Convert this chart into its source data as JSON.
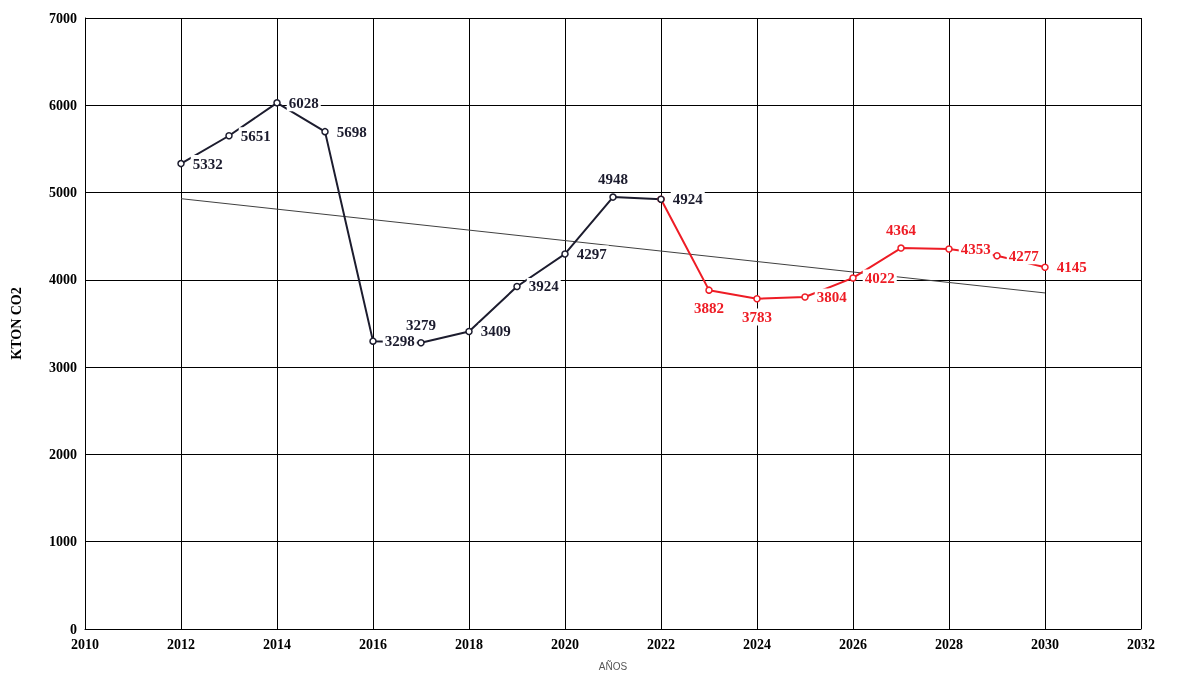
{
  "chart_data": {
    "type": "line",
    "xlabel": "AÑOS",
    "ylabel": "KTON CO2",
    "xlim": [
      2010,
      2032
    ],
    "xticks": [
      2010,
      2012,
      2014,
      2016,
      2018,
      2020,
      2022,
      2024,
      2026,
      2028,
      2030,
      2032
    ],
    "ylim": [
      0,
      7000
    ],
    "yticks": [
      0,
      1000,
      2000,
      3000,
      4000,
      5000,
      6000,
      7000
    ],
    "grid": true,
    "marker": "circle",
    "line_style": "solid",
    "series": [
      {
        "color": "#ee1c25",
        "x": [
          2022,
          2023,
          2024,
          2025,
          2026,
          2027,
          2028,
          2029,
          2030
        ],
        "values": [
          4924,
          3882,
          3783,
          3804,
          4022,
          4364,
          4353,
          4277,
          4145
        ],
        "value_labels": [
          null,
          "3882",
          "3783",
          "3804",
          "4022",
          "4364",
          "4353",
          "4277",
          "4145"
        ]
      },
      {
        "color": "#1c1c2e",
        "x": [
          2012,
          2013,
          2014,
          2015,
          2016,
          2017,
          2018,
          2019,
          2020,
          2021,
          2022
        ],
        "values": [
          5332,
          5651,
          6028,
          5698,
          3298,
          3279,
          3409,
          3924,
          4297,
          4948,
          4924
        ],
        "value_labels": [
          "5332",
          "5651",
          "6028",
          "5698",
          "3298",
          "3279",
          "3409",
          "3924",
          "4297",
          "4948",
          "4924"
        ]
      },
      {
        "color": "#404040",
        "marker": "none",
        "x": [
          2012,
          2030
        ],
        "values": [
          4930,
          3850
        ]
      }
    ]
  }
}
